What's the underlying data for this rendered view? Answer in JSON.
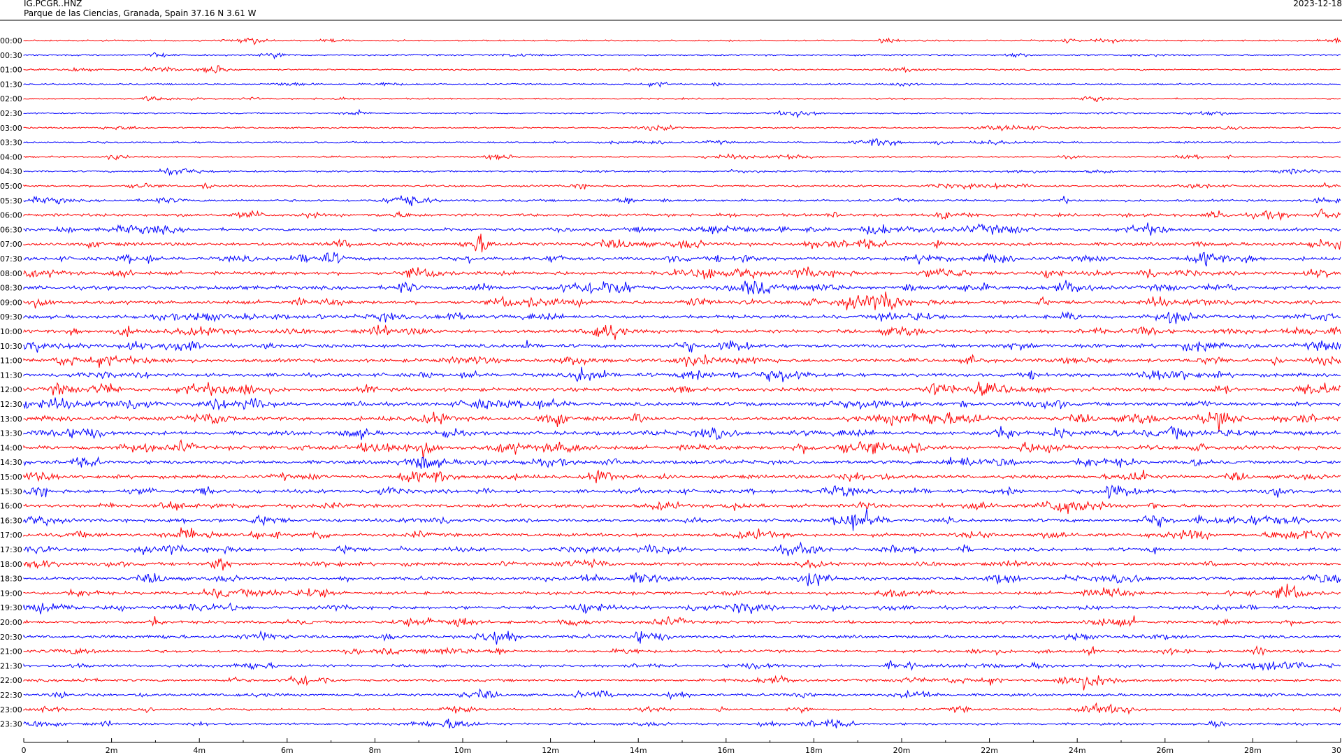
{
  "header": {
    "station_code": "IG.PCGR..HNZ",
    "location_line": "Parque de las Ciencias, Granada, Spain  37.16 N 3.61 W",
    "date": "2023-12-18"
  },
  "colors": {
    "trace_a": "#ff0000",
    "trace_b": "#0000ff",
    "axis": "#000000",
    "background": "#ffffff"
  },
  "chart_data": {
    "type": "line",
    "title": "",
    "xlabel": "",
    "ylabel": "",
    "x_ticks": [
      "0",
      "2m",
      "4m",
      "6m",
      "8m",
      "10m",
      "12m",
      "14m",
      "16m",
      "18m",
      "20m",
      "22m",
      "24m",
      "26m",
      "28m",
      "30"
    ],
    "x_range_minutes": [
      0,
      30
    ],
    "grid": false,
    "legend": "none",
    "rows": [
      {
        "label": "00:00",
        "color": "red",
        "activity": 0.15
      },
      {
        "label": "00:30",
        "color": "blue",
        "activity": 0.15
      },
      {
        "label": "01:00",
        "color": "red",
        "activity": 0.15
      },
      {
        "label": "01:30",
        "color": "blue",
        "activity": 0.15
      },
      {
        "label": "02:00",
        "color": "red",
        "activity": 0.15
      },
      {
        "label": "02:30",
        "color": "blue",
        "activity": 0.15
      },
      {
        "label": "03:00",
        "color": "red",
        "activity": 0.15
      },
      {
        "label": "03:30",
        "color": "blue",
        "activity": 0.2
      },
      {
        "label": "04:00",
        "color": "red",
        "activity": 0.2
      },
      {
        "label": "04:30",
        "color": "blue",
        "activity": 0.25
      },
      {
        "label": "05:00",
        "color": "red",
        "activity": 0.3
      },
      {
        "label": "05:30",
        "color": "blue",
        "activity": 0.4
      },
      {
        "label": "06:00",
        "color": "red",
        "activity": 0.6
      },
      {
        "label": "06:30",
        "color": "blue",
        "activity": 0.7
      },
      {
        "label": "07:00",
        "color": "red",
        "activity": 0.75
      },
      {
        "label": "07:30",
        "color": "blue",
        "activity": 0.8
      },
      {
        "label": "08:00",
        "color": "red",
        "activity": 0.8
      },
      {
        "label": "08:30",
        "color": "blue",
        "activity": 0.85
      },
      {
        "label": "09:00",
        "color": "red",
        "activity": 0.85
      },
      {
        "label": "09:30",
        "color": "blue",
        "activity": 0.8
      },
      {
        "label": "10:00",
        "color": "red",
        "activity": 0.8
      },
      {
        "label": "10:30",
        "color": "blue",
        "activity": 0.8
      },
      {
        "label": "11:00",
        "color": "red",
        "activity": 0.85
      },
      {
        "label": "11:30",
        "color": "blue",
        "activity": 0.85
      },
      {
        "label": "12:00",
        "color": "red",
        "activity": 0.85
      },
      {
        "label": "12:30",
        "color": "blue",
        "activity": 0.85
      },
      {
        "label": "13:00",
        "color": "red",
        "activity": 0.9
      },
      {
        "label": "13:30",
        "color": "blue",
        "activity": 0.9
      },
      {
        "label": "14:00",
        "color": "red",
        "activity": 0.9
      },
      {
        "label": "14:30",
        "color": "blue",
        "activity": 0.8
      },
      {
        "label": "15:00",
        "color": "red",
        "activity": 0.8
      },
      {
        "label": "15:30",
        "color": "blue",
        "activity": 0.8
      },
      {
        "label": "16:00",
        "color": "red",
        "activity": 0.75
      },
      {
        "label": "16:30",
        "color": "blue",
        "activity": 0.75
      },
      {
        "label": "17:00",
        "color": "red",
        "activity": 0.75
      },
      {
        "label": "17:30",
        "color": "blue",
        "activity": 0.75
      },
      {
        "label": "18:00",
        "color": "red",
        "activity": 0.7
      },
      {
        "label": "18:30",
        "color": "blue",
        "activity": 0.7
      },
      {
        "label": "19:00",
        "color": "red",
        "activity": 0.7
      },
      {
        "label": "19:30",
        "color": "blue",
        "activity": 0.7
      },
      {
        "label": "20:00",
        "color": "red",
        "activity": 0.6
      },
      {
        "label": "20:30",
        "color": "blue",
        "activity": 0.6
      },
      {
        "label": "21:00",
        "color": "red",
        "activity": 0.55
      },
      {
        "label": "21:30",
        "color": "blue",
        "activity": 0.55
      },
      {
        "label": "22:00",
        "color": "red",
        "activity": 0.5
      },
      {
        "label": "22:30",
        "color": "blue",
        "activity": 0.5
      },
      {
        "label": "23:00",
        "color": "red",
        "activity": 0.4
      },
      {
        "label": "23:30",
        "color": "blue",
        "activity": 0.4
      }
    ]
  }
}
